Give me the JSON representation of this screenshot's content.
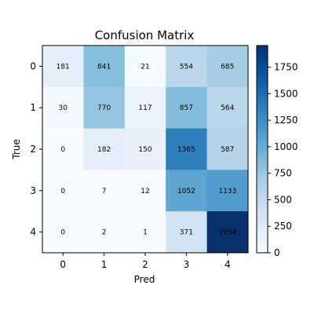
{
  "chart_data": {
    "type": "heatmap",
    "title": "Confusion Matrix",
    "xlabel": "Pred",
    "ylabel": "True",
    "x_categories": [
      "0",
      "1",
      "2",
      "3",
      "4"
    ],
    "y_categories": [
      "0",
      "1",
      "2",
      "3",
      "4"
    ],
    "values": [
      [
        181,
        841,
        21,
        554,
        685
      ],
      [
        30,
        770,
        117,
        857,
        564
      ],
      [
        0,
        182,
        150,
        1365,
        587
      ],
      [
        0,
        7,
        12,
        1052,
        1133
      ],
      [
        0,
        2,
        1,
        371,
        1954
      ]
    ],
    "colormap": "Blues",
    "color_range": [
      0,
      1954
    ],
    "colorbar_ticks": [
      0,
      250,
      500,
      750,
      1000,
      1250,
      1500,
      1750
    ]
  }
}
